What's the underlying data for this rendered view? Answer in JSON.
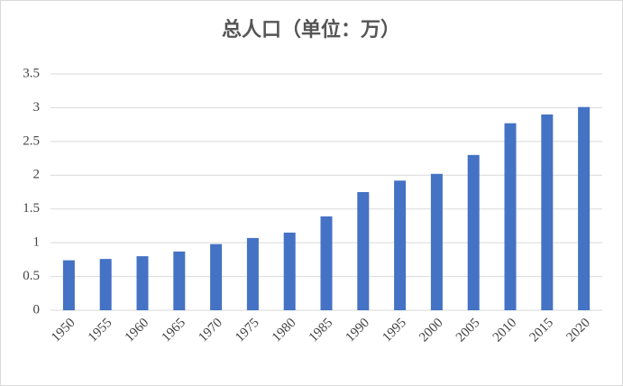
{
  "chart_data": {
    "type": "bar",
    "title": "总人口（单位：万）",
    "categories": [
      "1950",
      "1955",
      "1960",
      "1965",
      "1970",
      "1975",
      "1980",
      "1985",
      "1990",
      "1995",
      "2000",
      "2005",
      "2010",
      "2015",
      "2020"
    ],
    "values": [
      0.74,
      0.76,
      0.8,
      0.87,
      0.98,
      1.07,
      1.15,
      1.39,
      1.75,
      1.92,
      2.02,
      2.3,
      2.77,
      2.9,
      3.01
    ],
    "color": "#4472c4",
    "ylim": [
      0,
      3.5
    ],
    "yticks": [
      0,
      0.5,
      1,
      1.5,
      2,
      2.5,
      3,
      3.5
    ],
    "grid": true
  }
}
